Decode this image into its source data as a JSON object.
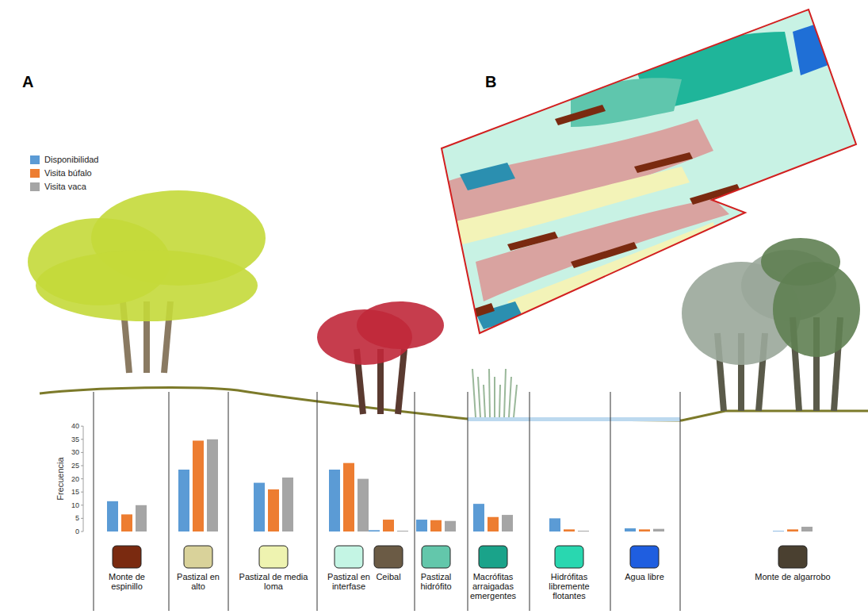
{
  "chart_data": {
    "type": "bar",
    "y_label": "Frecuencia",
    "categories": [
      "Monte de espinillo",
      "Pastizal en alto",
      "Pastizal de media loma",
      "Pastizal en interfase",
      "Ceibal",
      "Pastizal hidrófito",
      "Macrófitas arraigadas emergentes",
      "Hidrófitas libremente flotantes",
      "Agua libre",
      "Monte de algarrobo"
    ],
    "series": [
      {
        "name": "Disponibilidad",
        "color": "#5b9bd5",
        "values": [
          11.5,
          23.5,
          18.5,
          23.5,
          0.5,
          4.5,
          10.5,
          5,
          1.2,
          0.2
        ]
      },
      {
        "name": "Visita búfalo",
        "color": "#ed7d31",
        "values": [
          6.5,
          34.5,
          16,
          26,
          4.5,
          4.3,
          5.5,
          0.8,
          0.8,
          0.8
        ]
      },
      {
        "name": "Visita vaca",
        "color": "#a5a5a5",
        "values": [
          10,
          35,
          20.5,
          20,
          0.3,
          4,
          6.3,
          0.3,
          1,
          1.8
        ]
      }
    ],
    "ylim": [
      0,
      40
    ],
    "yticks": [
      0,
      5,
      10,
      15,
      20,
      25,
      30,
      35,
      40
    ],
    "grid": false,
    "legend": "top-left"
  },
  "panel_labels": [
    "A",
    "B"
  ]
}
